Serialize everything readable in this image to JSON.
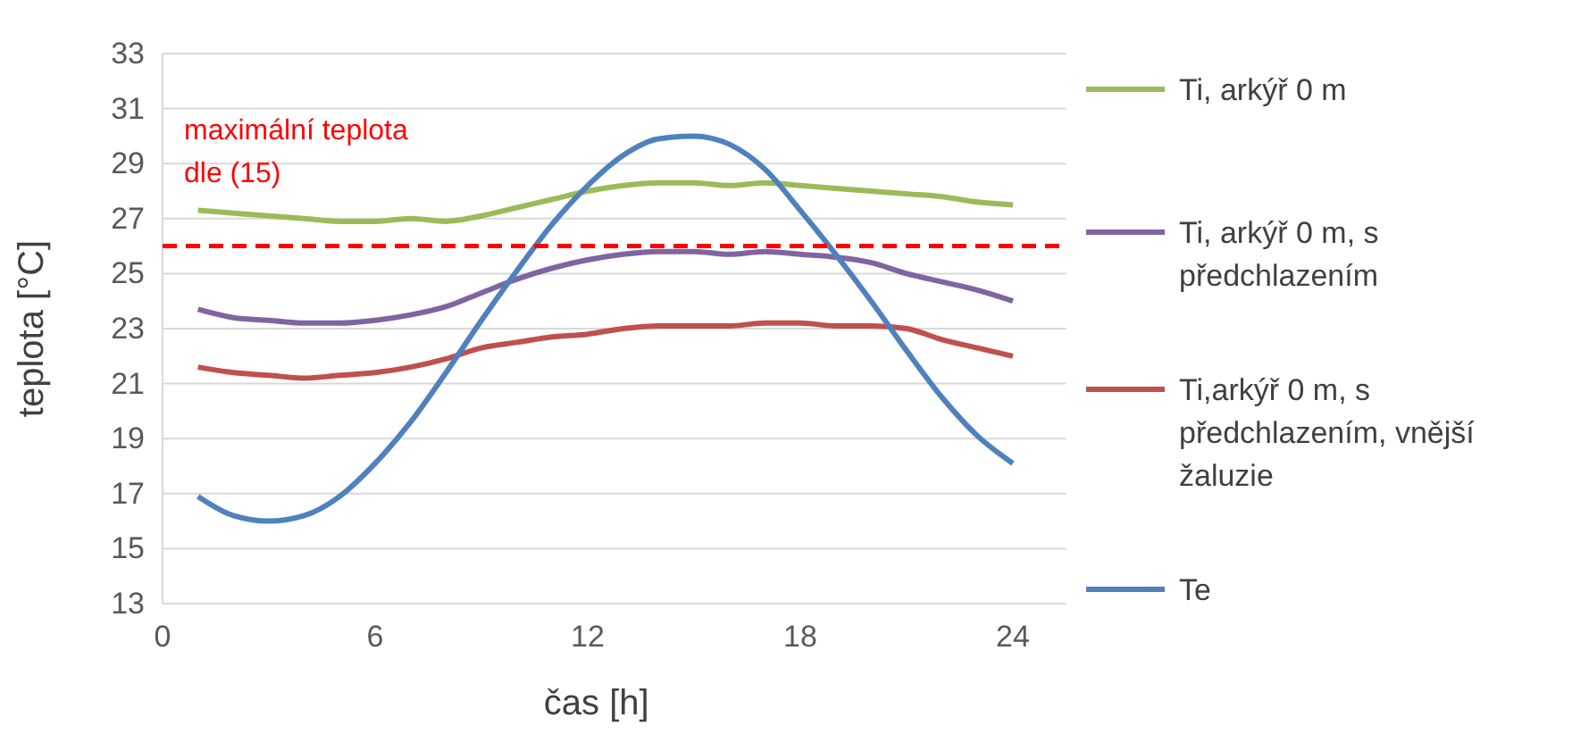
{
  "chart_data": {
    "type": "line",
    "xlabel": "čas [h]",
    "ylabel": "teplota [°C]",
    "x": [
      1,
      2,
      3,
      4,
      5,
      6,
      7,
      8,
      9,
      10,
      11,
      12,
      13,
      14,
      15,
      16,
      17,
      18,
      19,
      20,
      21,
      22,
      23,
      24
    ],
    "xlim": [
      0,
      25.5
    ],
    "xticks": [
      0,
      6,
      12,
      18,
      24
    ],
    "ylim": [
      13,
      33
    ],
    "yticks": [
      13,
      15,
      17,
      19,
      21,
      23,
      25,
      27,
      29,
      31,
      33
    ],
    "grid": "y",
    "legend": "right",
    "marker": "none",
    "line_style": "solid",
    "series": [
      {
        "name": "Ti, arkýř 0 m",
        "color": "#9bbb59",
        "values": [
          27.3,
          27.2,
          27.1,
          27.0,
          26.9,
          26.9,
          27.0,
          26.9,
          27.1,
          27.4,
          27.7,
          28.0,
          28.2,
          28.3,
          28.3,
          28.2,
          28.3,
          28.2,
          28.1,
          28.0,
          27.9,
          27.8,
          27.6,
          27.5
        ]
      },
      {
        "name": "Ti, arkýř 0 m, s předchlazením",
        "color": "#8064a2",
        "values": [
          23.7,
          23.4,
          23.3,
          23.2,
          23.2,
          23.3,
          23.5,
          23.8,
          24.3,
          24.8,
          25.2,
          25.5,
          25.7,
          25.8,
          25.8,
          25.7,
          25.8,
          25.7,
          25.6,
          25.4,
          25.0,
          24.7,
          24.4,
          24.0
        ]
      },
      {
        "name": "Ti,arkýř 0 m, s předchlazením, vnější žaluzie",
        "color": "#c0504d",
        "values": [
          21.6,
          21.4,
          21.3,
          21.2,
          21.3,
          21.4,
          21.6,
          21.9,
          22.3,
          22.5,
          22.7,
          22.8,
          23.0,
          23.1,
          23.1,
          23.1,
          23.2,
          23.2,
          23.1,
          23.1,
          23.0,
          22.6,
          22.3,
          22.0
        ]
      },
      {
        "name": "Te",
        "color": "#4f81bd",
        "values": [
          16.9,
          16.2,
          16.0,
          16.2,
          16.9,
          18.1,
          19.6,
          21.4,
          23.3,
          25.1,
          26.8,
          28.2,
          29.3,
          29.9,
          30.0,
          29.7,
          28.8,
          27.3,
          25.7,
          24.0,
          22.2,
          20.5,
          19.1,
          18.1
        ]
      }
    ],
    "ref_lines": [
      {
        "axis": "y",
        "value": 26,
        "label": "maximální teplota dle (15)",
        "color": "#ff0000",
        "line_style": "dashed"
      }
    ]
  }
}
